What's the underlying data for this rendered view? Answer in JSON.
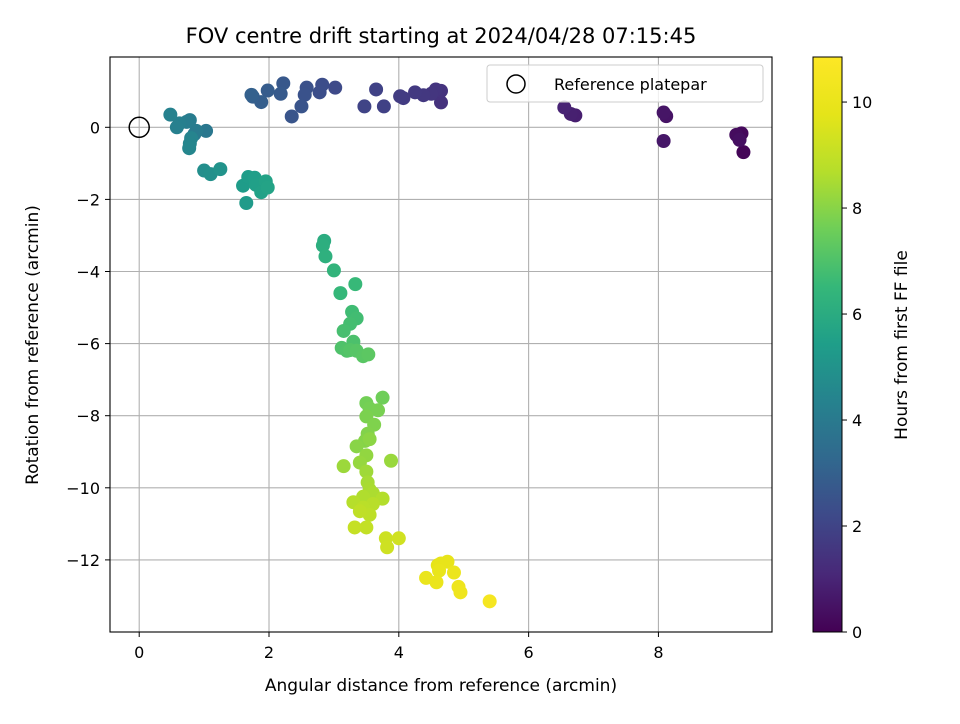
{
  "chart_data": {
    "type": "scatter",
    "title": "FOV centre drift starting at 2024/04/28 07:15:45",
    "xlabel": "Angular distance from reference (arcmin)",
    "ylabel": "Rotation from reference (arcmin)",
    "xlim": [
      -0.45,
      9.75
    ],
    "ylim": [
      -14.0,
      1.95
    ],
    "xticks": [
      0,
      2,
      4,
      6,
      8
    ],
    "yticks": [
      0,
      -2,
      -4,
      -6,
      -8,
      -10,
      -12
    ],
    "grid": true,
    "legend": {
      "placement": "top-right",
      "entries": [
        "Reference platepar"
      ]
    },
    "reference_point": {
      "x": 0,
      "y": 0
    },
    "colorbar": {
      "label": "Hours from first FF file",
      "range": [
        0,
        10.85
      ],
      "ticks": [
        0,
        2,
        4,
        6,
        8,
        10
      ],
      "colormap": "viridis"
    },
    "series": [
      {
        "points": [
          {
            "x": 9.31,
            "y": -0.69,
            "h": 0.1
          },
          {
            "x": 9.28,
            "y": -0.17,
            "h": 0.2
          },
          {
            "x": 9.2,
            "y": -0.21,
            "h": 0.3
          },
          {
            "x": 9.25,
            "y": -0.35,
            "h": 0.4
          },
          {
            "x": 8.12,
            "y": 0.31,
            "h": 0.5
          },
          {
            "x": 8.08,
            "y": 0.41,
            "h": 0.55
          },
          {
            "x": 8.08,
            "y": -0.38,
            "h": 0.6
          },
          {
            "x": 6.72,
            "y": 0.33,
            "h": 0.8
          },
          {
            "x": 6.65,
            "y": 0.37,
            "h": 0.85
          },
          {
            "x": 6.55,
            "y": 0.55,
            "h": 0.95
          },
          {
            "x": 4.65,
            "y": 0.69,
            "h": 1.4
          },
          {
            "x": 4.65,
            "y": 1.01,
            "h": 1.45
          },
          {
            "x": 4.57,
            "y": 1.05,
            "h": 1.5
          },
          {
            "x": 4.5,
            "y": 0.93,
            "h": 1.55
          },
          {
            "x": 4.38,
            "y": 0.89,
            "h": 1.6
          },
          {
            "x": 4.25,
            "y": 0.97,
            "h": 1.65
          },
          {
            "x": 4.07,
            "y": 0.81,
            "h": 1.7
          },
          {
            "x": 4.02,
            "y": 0.86,
            "h": 1.75
          },
          {
            "x": 3.77,
            "y": 0.58,
            "h": 1.9
          },
          {
            "x": 3.65,
            "y": 1.05,
            "h": 1.95
          },
          {
            "x": 3.47,
            "y": 0.58,
            "h": 2.0
          },
          {
            "x": 3.02,
            "y": 1.1,
            "h": 2.2
          },
          {
            "x": 2.82,
            "y": 1.18,
            "h": 2.3
          },
          {
            "x": 2.78,
            "y": 0.97,
            "h": 2.35
          },
          {
            "x": 2.58,
            "y": 1.1,
            "h": 2.45
          },
          {
            "x": 2.55,
            "y": 0.9,
            "h": 2.5
          },
          {
            "x": 2.5,
            "y": 0.58,
            "h": 2.55
          },
          {
            "x": 2.35,
            "y": 0.3,
            "h": 2.6
          },
          {
            "x": 2.22,
            "y": 1.22,
            "h": 2.7
          },
          {
            "x": 2.18,
            "y": 0.93,
            "h": 2.75
          },
          {
            "x": 1.98,
            "y": 1.02,
            "h": 2.85
          },
          {
            "x": 1.88,
            "y": 0.7,
            "h": 2.9
          },
          {
            "x": 1.75,
            "y": 0.85,
            "h": 2.95
          },
          {
            "x": 1.73,
            "y": 0.9,
            "h": 3.0
          },
          {
            "x": 1.03,
            "y": -0.1,
            "h": 3.9
          },
          {
            "x": 0.85,
            "y": -0.19,
            "h": 4.0
          },
          {
            "x": 0.88,
            "y": -0.1,
            "h": 4.05
          },
          {
            "x": 0.78,
            "y": 0.2,
            "h": 4.1
          },
          {
            "x": 0.73,
            "y": 0.15,
            "h": 4.15
          },
          {
            "x": 0.62,
            "y": 0.11,
            "h": 4.2
          },
          {
            "x": 0.58,
            "y": 0.0,
            "h": 4.25
          },
          {
            "x": 0.48,
            "y": 0.35,
            "h": 4.3
          },
          {
            "x": 0.8,
            "y": -0.3,
            "h": 4.4
          },
          {
            "x": 0.78,
            "y": -0.45,
            "h": 4.45
          },
          {
            "x": 0.77,
            "y": -0.58,
            "h": 4.5
          },
          {
            "x": 1.0,
            "y": -1.2,
            "h": 4.8
          },
          {
            "x": 1.1,
            "y": -1.3,
            "h": 4.9
          },
          {
            "x": 1.25,
            "y": -1.16,
            "h": 5.0
          },
          {
            "x": 1.65,
            "y": -2.1,
            "h": 5.3
          },
          {
            "x": 1.6,
            "y": -1.62,
            "h": 5.35
          },
          {
            "x": 1.68,
            "y": -1.38,
            "h": 5.4
          },
          {
            "x": 1.78,
            "y": -1.4,
            "h": 5.45
          },
          {
            "x": 1.8,
            "y": -1.6,
            "h": 5.5
          },
          {
            "x": 1.88,
            "y": -1.8,
            "h": 5.55
          },
          {
            "x": 1.95,
            "y": -1.5,
            "h": 5.6
          },
          {
            "x": 1.98,
            "y": -1.67,
            "h": 5.65
          },
          {
            "x": 2.85,
            "y": -3.15,
            "h": 6.05
          },
          {
            "x": 2.83,
            "y": -3.28,
            "h": 6.1
          },
          {
            "x": 2.87,
            "y": -3.58,
            "h": 6.2
          },
          {
            "x": 3.0,
            "y": -3.97,
            "h": 6.35
          },
          {
            "x": 3.1,
            "y": -4.6,
            "h": 6.5
          },
          {
            "x": 3.33,
            "y": -4.35,
            "h": 6.55
          },
          {
            "x": 3.28,
            "y": -5.12,
            "h": 6.7
          },
          {
            "x": 3.35,
            "y": -5.3,
            "h": 6.75
          },
          {
            "x": 3.25,
            "y": -5.45,
            "h": 6.8
          },
          {
            "x": 3.15,
            "y": -5.65,
            "h": 6.85
          },
          {
            "x": 3.3,
            "y": -5.95,
            "h": 6.95
          },
          {
            "x": 3.12,
            "y": -6.12,
            "h": 7.0
          },
          {
            "x": 3.2,
            "y": -6.2,
            "h": 7.05
          },
          {
            "x": 3.25,
            "y": -6.18,
            "h": 7.1
          },
          {
            "x": 3.35,
            "y": -6.2,
            "h": 7.15
          },
          {
            "x": 3.45,
            "y": -6.35,
            "h": 7.2
          },
          {
            "x": 3.53,
            "y": -6.3,
            "h": 7.25
          },
          {
            "x": 3.75,
            "y": -7.5,
            "h": 7.6
          },
          {
            "x": 3.5,
            "y": -7.65,
            "h": 7.65
          },
          {
            "x": 3.55,
            "y": -7.8,
            "h": 7.7
          },
          {
            "x": 3.68,
            "y": -7.85,
            "h": 7.75
          },
          {
            "x": 3.5,
            "y": -8.02,
            "h": 7.8
          },
          {
            "x": 3.62,
            "y": -8.25,
            "h": 7.85
          },
          {
            "x": 3.52,
            "y": -8.5,
            "h": 7.9
          },
          {
            "x": 3.48,
            "y": -8.7,
            "h": 7.95
          },
          {
            "x": 3.35,
            "y": -8.85,
            "h": 8.0
          },
          {
            "x": 3.55,
            "y": -8.65,
            "h": 8.05
          },
          {
            "x": 3.5,
            "y": -9.1,
            "h": 8.15
          },
          {
            "x": 3.4,
            "y": -9.3,
            "h": 8.2
          },
          {
            "x": 3.88,
            "y": -9.25,
            "h": 8.25
          },
          {
            "x": 3.15,
            "y": -9.4,
            "h": 8.3
          },
          {
            "x": 3.5,
            "y": -9.55,
            "h": 8.35
          },
          {
            "x": 3.52,
            "y": -9.85,
            "h": 8.45
          },
          {
            "x": 3.55,
            "y": -10.05,
            "h": 8.5
          },
          {
            "x": 3.6,
            "y": -10.15,
            "h": 8.55
          },
          {
            "x": 3.45,
            "y": -10.25,
            "h": 8.6
          },
          {
            "x": 3.75,
            "y": -10.3,
            "h": 8.65
          },
          {
            "x": 3.3,
            "y": -10.4,
            "h": 8.7
          },
          {
            "x": 3.6,
            "y": -10.45,
            "h": 8.75
          },
          {
            "x": 3.45,
            "y": -10.55,
            "h": 8.8
          },
          {
            "x": 3.55,
            "y": -10.75,
            "h": 8.85
          },
          {
            "x": 3.4,
            "y": -10.65,
            "h": 8.9
          },
          {
            "x": 3.5,
            "y": -11.1,
            "h": 9.0
          },
          {
            "x": 3.32,
            "y": -11.1,
            "h": 9.05
          },
          {
            "x": 3.8,
            "y": -11.4,
            "h": 9.2
          },
          {
            "x": 3.82,
            "y": -11.65,
            "h": 9.25
          },
          {
            "x": 4.0,
            "y": -11.4,
            "h": 9.3
          },
          {
            "x": 4.6,
            "y": -12.15,
            "h": 9.8
          },
          {
            "x": 4.65,
            "y": -12.1,
            "h": 9.85
          },
          {
            "x": 4.75,
            "y": -12.05,
            "h": 9.9
          },
          {
            "x": 4.62,
            "y": -12.3,
            "h": 9.95
          },
          {
            "x": 4.42,
            "y": -12.5,
            "h": 10.0
          },
          {
            "x": 4.58,
            "y": -12.62,
            "h": 10.05
          },
          {
            "x": 4.85,
            "y": -12.35,
            "h": 10.1
          },
          {
            "x": 4.92,
            "y": -12.75,
            "h": 10.15
          },
          {
            "x": 4.95,
            "y": -12.9,
            "h": 10.2
          },
          {
            "x": 5.4,
            "y": -13.15,
            "h": 10.5
          }
        ]
      }
    ]
  }
}
